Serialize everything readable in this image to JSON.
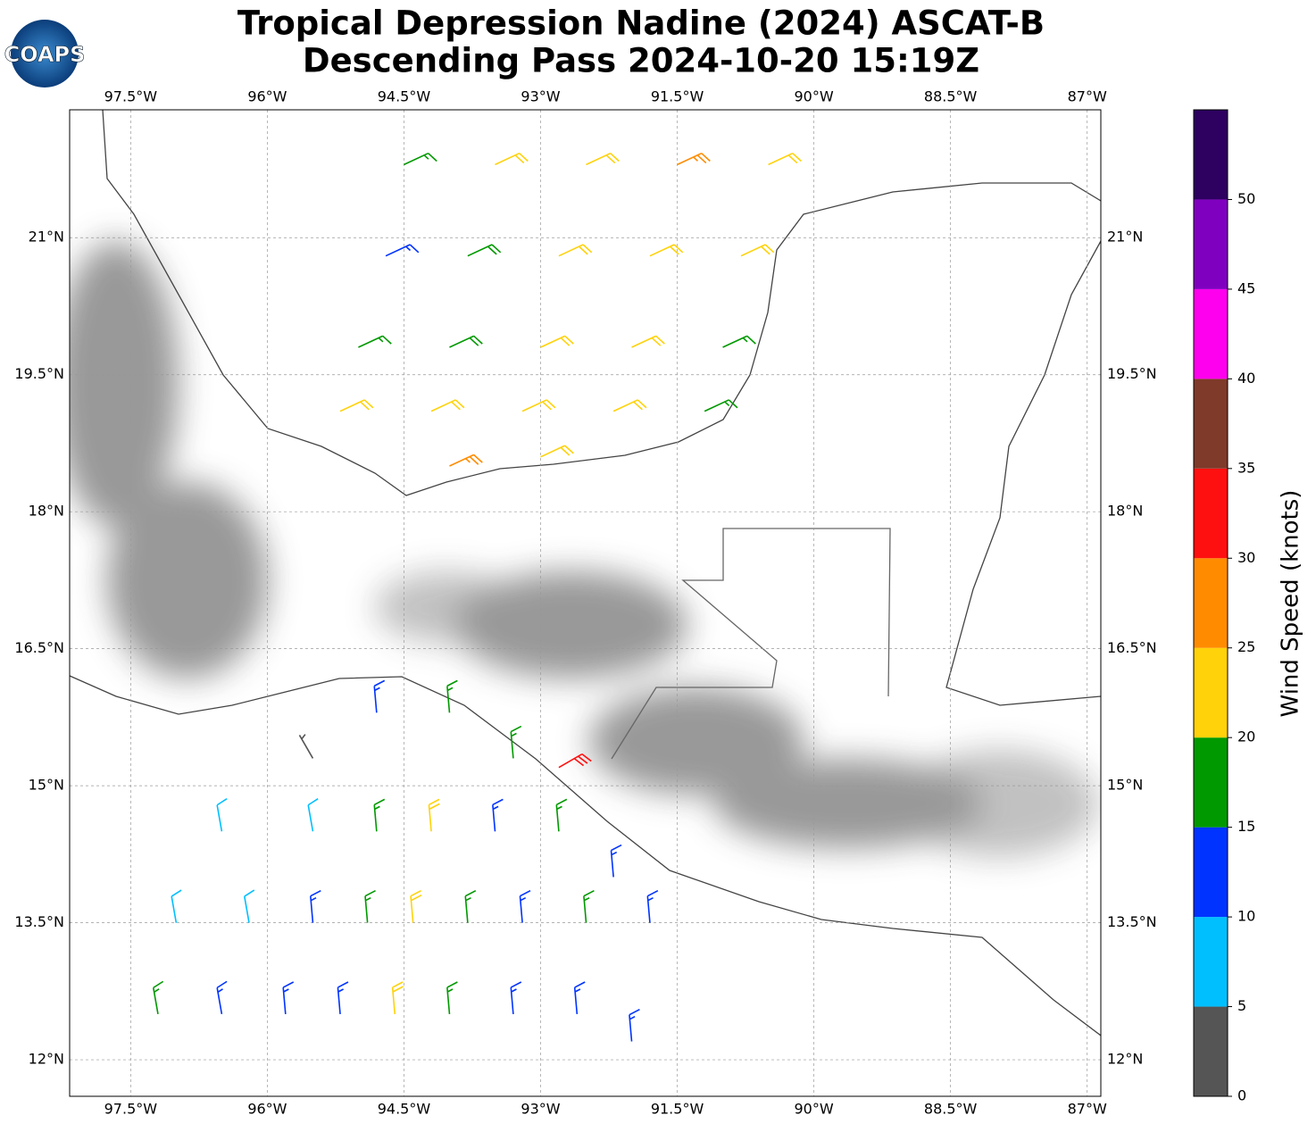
{
  "chart_data": {
    "type": "wind-barb-map",
    "title": "Tropical Depression Nadine (2024) ASCAT-B",
    "subtitle": "Descending Pass 2024-10-20 15:19Z",
    "logo": "COAPS",
    "xlim": [
      -98.17,
      -86.85
    ],
    "ylim": [
      11.6,
      22.4
    ],
    "xticks": [
      {
        "value": -97.5,
        "label": "97.5°W"
      },
      {
        "value": -96,
        "label": "96°W"
      },
      {
        "value": -94.5,
        "label": "94.5°W"
      },
      {
        "value": -93,
        "label": "93°W"
      },
      {
        "value": -91.5,
        "label": "91.5°W"
      },
      {
        "value": -90,
        "label": "90°W"
      },
      {
        "value": -88.5,
        "label": "88.5°W"
      },
      {
        "value": -87,
        "label": "87°W"
      }
    ],
    "yticks": [
      {
        "value": 12,
        "label": "12°N"
      },
      {
        "value": 13.5,
        "label": "13.5°N"
      },
      {
        "value": 15,
        "label": "15°N"
      },
      {
        "value": 16.5,
        "label": "16.5°N"
      },
      {
        "value": 18,
        "label": "18°N"
      },
      {
        "value": 19.5,
        "label": "19.5°N"
      },
      {
        "value": 21,
        "label": "21°N"
      }
    ],
    "grid": true,
    "colorbar": {
      "label": "Wind Speed (knots)",
      "bounds": [
        0,
        5,
        10,
        15,
        20,
        25,
        30,
        35,
        40,
        45,
        50,
        55
      ],
      "colors": [
        "#555555",
        "#00bfff",
        "#0033ff",
        "#009900",
        "#ffd20a",
        "#ff8c00",
        "#ff1010",
        "#7f3a2a",
        "#ff00ee",
        "#8000c0",
        "#2e0060"
      ],
      "ticks": [
        0,
        5,
        10,
        15,
        20,
        25,
        30,
        35,
        40,
        45,
        50
      ]
    },
    "barbs": {
      "lon": [
        -94.5,
        -93.5,
        -92.5,
        -91.5,
        -90.5,
        -94.7,
        -93.8,
        -92.8,
        -91.8,
        -90.8,
        -95.0,
        -94.0,
        -93.0,
        -92.0,
        -91.0,
        -95.2,
        -94.2,
        -93.2,
        -92.2,
        -91.2,
        -94.0,
        -93.0,
        -95.5,
        -94.8,
        -94.0,
        -93.3,
        -96.5,
        -95.5,
        -94.8,
        -94.2,
        -93.5,
        -92.8,
        -92.2,
        -97.0,
        -96.2,
        -95.5,
        -94.9,
        -94.4,
        -93.8,
        -93.2,
        -92.5,
        -91.8,
        -97.2,
        -96.5,
        -95.8,
        -95.2,
        -94.6,
        -94.0,
        -93.3,
        -92.6,
        -92.0,
        -92.8
      ],
      "lat": [
        21.8,
        21.8,
        21.8,
        21.8,
        21.8,
        20.8,
        20.8,
        20.8,
        20.8,
        20.8,
        19.8,
        19.8,
        19.8,
        19.8,
        19.8,
        19.1,
        19.1,
        19.1,
        19.1,
        19.1,
        18.5,
        18.6,
        15.3,
        15.8,
        15.8,
        15.3,
        14.5,
        14.5,
        14.5,
        14.5,
        14.5,
        14.5,
        14.0,
        13.5,
        13.5,
        13.5,
        13.5,
        13.5,
        13.5,
        13.5,
        13.5,
        13.5,
        12.5,
        12.5,
        12.5,
        12.5,
        12.5,
        12.5,
        12.5,
        12.5,
        12.2,
        15.2
      ],
      "speed": [
        17,
        22,
        22,
        27,
        22,
        13,
        18,
        22,
        22,
        22,
        17,
        18,
        22,
        22,
        17,
        22,
        22,
        22,
        22,
        17,
        27,
        22,
        3,
        13,
        17,
        17,
        8,
        8,
        17,
        22,
        13,
        17,
        13,
        8,
        8,
        13,
        17,
        22,
        17,
        13,
        17,
        13,
        17,
        13,
        13,
        13,
        22,
        17,
        13,
        13,
        13,
        32
      ],
      "direction": [
        65,
        65,
        65,
        65,
        65,
        65,
        65,
        65,
        65,
        65,
        65,
        65,
        65,
        65,
        65,
        65,
        65,
        65,
        65,
        65,
        65,
        65,
        330,
        355,
        355,
        355,
        350,
        350,
        355,
        355,
        355,
        355,
        355,
        350,
        350,
        355,
        355,
        355,
        355,
        355,
        355,
        355,
        350,
        350,
        355,
        355,
        355,
        355,
        355,
        355,
        355,
        60
      ]
    }
  }
}
